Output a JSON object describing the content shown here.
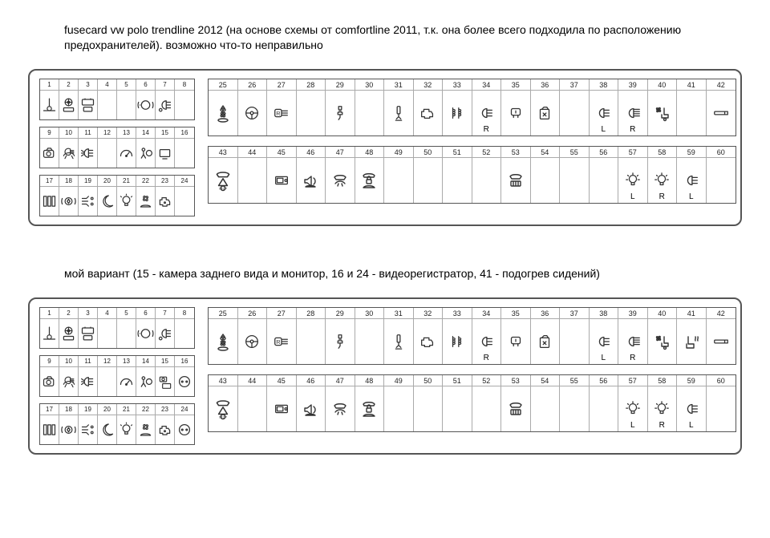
{
  "headings": {
    "h1": "fusecard vw polo trendline 2012 (на основе схемы от comfortline 2011, т.к. она более всего подходила по расположению предохранителей). возможно что-то неправильно",
    "h2": "мой вариант (15 - камера заднего вида и монитор, 16 и 24 - видеорегистратор, 41 - подогрев сидений)"
  },
  "style": {
    "page_bg": "#ffffff",
    "panel_border": "#555555",
    "panel_radius": 10,
    "cell_border": "#aaaaaa",
    "text_color": "#000000",
    "icon_color": "#333333",
    "heading_fontsize": 14,
    "num_fontsize_small": 8,
    "num_fontsize_big": 9,
    "small_cell_w": 24,
    "small_cell_h": 50,
    "big_cell_w": 36.5,
    "big_cell_h": 70
  },
  "icons": {
    "1": "temp-warning",
    "2": "steering-abs",
    "3": "battery-display",
    "6": "brake-light",
    "7": "headlight-dial",
    "9": "camera",
    "10": "wiper-foglight",
    "11": "foglight",
    "13": "gauge",
    "14": "airbag",
    "15": "display-small",
    "17": "vent-columns",
    "18": "brake-drop",
    "19": "indicator-lights",
    "20": "night-light",
    "21": "bulb-alert",
    "22": "fan-car",
    "23": "engine-alert",
    "25": "ac-fan-diag",
    "26": "steering-wheel",
    "27": "reverse-light",
    "29": "spark-plug",
    "31": "injector",
    "32": "engine-check",
    "33": "coils",
    "34": "headlight",
    "34_lbl": "R",
    "35": "cabin-light",
    "36": "fuel-can",
    "38": "headlight",
    "38_lbl": "L",
    "39": "highbeam",
    "39_lbl": "R",
    "40": "fan-seat",
    "42": "cig-lighter",
    "43": "car-triangle-stop",
    "45": "radio-display",
    "46": "horn-car",
    "47": "car-wipe",
    "48": "car-locks",
    "53": "defrost-car",
    "57": "bulb",
    "57_lbl": "L",
    "58": "bulb",
    "58_lbl": "R",
    "59": "headlight",
    "59_lbl": "L"
  },
  "panels": [
    {
      "left_rows": [
        [
          1,
          2,
          3,
          4,
          5,
          6,
          7,
          8
        ],
        [
          9,
          10,
          11,
          12,
          13,
          14,
          15,
          16
        ],
        [
          17,
          18,
          19,
          20,
          21,
          22,
          23,
          24
        ]
      ],
      "right_rows": [
        [
          25,
          26,
          27,
          28,
          29,
          30,
          31,
          32,
          33,
          34,
          35,
          36,
          37,
          38,
          39,
          40,
          41,
          42
        ],
        [
          43,
          44,
          45,
          46,
          47,
          48,
          49,
          50,
          51,
          52,
          53,
          54,
          55,
          56,
          57,
          58,
          59,
          60
        ]
      ],
      "overrides": {}
    },
    {
      "left_rows": [
        [
          1,
          2,
          3,
          4,
          5,
          6,
          7,
          8
        ],
        [
          9,
          10,
          11,
          12,
          13,
          14,
          15,
          16
        ],
        [
          17,
          18,
          19,
          20,
          21,
          22,
          23,
          24
        ]
      ],
      "right_rows": [
        [
          25,
          26,
          27,
          28,
          29,
          30,
          31,
          32,
          33,
          34,
          35,
          36,
          37,
          38,
          39,
          40,
          41,
          42
        ],
        [
          43,
          44,
          45,
          46,
          47,
          48,
          49,
          50,
          51,
          52,
          53,
          54,
          55,
          56,
          57,
          58,
          59,
          60
        ]
      ],
      "overrides": {
        "15": "camera-monitor",
        "16": "socket",
        "24": "socket",
        "41": "seat-heat"
      }
    }
  ]
}
